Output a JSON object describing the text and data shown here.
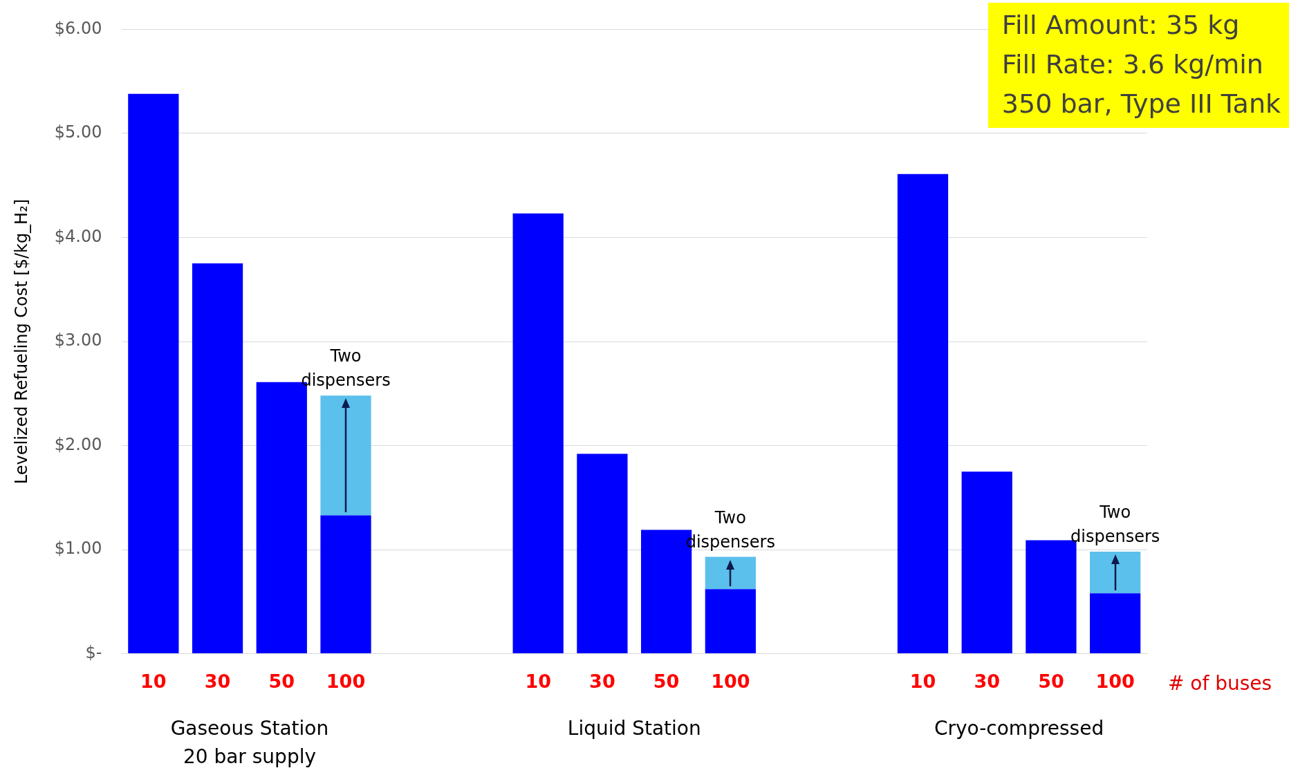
{
  "chart_data": {
    "type": "bar",
    "stacked": true,
    "ylabel": "Levelized Refueling Cost [$/kg_H₂]",
    "xlabel": "# of buses",
    "categories": [
      "10",
      "30",
      "50",
      "100",
      null,
      null,
      "10",
      "30",
      "50",
      "100",
      null,
      null,
      "10",
      "30",
      "50",
      "100"
    ],
    "series": [
      {
        "color": "#0000ff",
        "values": [
          5.38,
          3.75,
          2.61,
          1.33,
          null,
          null,
          4.23,
          1.92,
          1.19,
          0.62,
          null,
          null,
          4.61,
          1.75,
          1.09,
          0.58
        ]
      },
      {
        "color": "#5bc0eb",
        "values": [
          null,
          null,
          null,
          1.15,
          null,
          null,
          null,
          null,
          null,
          0.31,
          null,
          null,
          null,
          null,
          null,
          0.4
        ]
      }
    ],
    "ylim": [
      0,
      6
    ],
    "yticks": [
      {
        "value": 0,
        "label": "$-"
      },
      {
        "value": 1,
        "label": "$1.00"
      },
      {
        "value": 2,
        "label": "$2.00"
      },
      {
        "value": 3,
        "label": "$3.00"
      },
      {
        "value": 4,
        "label": "$4.00"
      },
      {
        "value": 5,
        "label": "$5.00"
      },
      {
        "value": 6,
        "label": "$6.00"
      }
    ],
    "grid": "y",
    "legend": false,
    "annotations": [
      "Fill Amount: 35 kg\nFill Rate: 3.6 kg/min\n350 bar, Type III Tank",
      "Gaseous Station\n20 bar supply",
      "Liquid Station",
      "Cryo-compressed",
      {
        "text": "Two\ndispensers",
        "y": 2.48
      },
      {
        "text": "Two\ndispensers",
        "y": 0.93
      },
      {
        "text": "Two\ndispensers",
        "y": 0.98
      }
    ]
  }
}
